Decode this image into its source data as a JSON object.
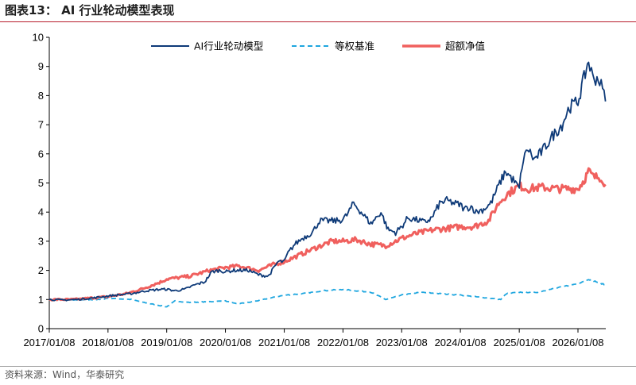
{
  "title": "图表13：  AI 行业轮动模型表现",
  "source": "资料来源：Wind，华泰研究",
  "chart_data": {
    "type": "line",
    "x_ticks": [
      "2017/01/08",
      "2018/01/08",
      "2019/01/08",
      "2020/01/08",
      "2021/01/08",
      "2022/01/08",
      "2023/01/08",
      "2024/01/08",
      "2025/01/08",
      "2026/01/08"
    ],
    "ylim": [
      0,
      10
    ],
    "y_ticks": [
      "0",
      "1",
      "2",
      "3",
      "4",
      "5",
      "6",
      "7",
      "8",
      "9",
      "10"
    ],
    "xlim": [
      "2017/01/08",
      "2026/06/30"
    ],
    "legend_position": "top-center",
    "grid": false,
    "series": [
      {
        "name": "AI行业轮动模型",
        "color": "#0e3a78",
        "style": "solid",
        "points": [
          [
            "2017/01/08",
            1.0
          ],
          [
            "2017/04/01",
            0.98
          ],
          [
            "2017/07/01",
            1.0
          ],
          [
            "2017/10/01",
            1.05
          ],
          [
            "2018/01/08",
            1.12
          ],
          [
            "2018/03/01",
            1.15
          ],
          [
            "2018/06/01",
            1.2
          ],
          [
            "2018/09/01",
            1.3
          ],
          [
            "2018/12/01",
            1.35
          ],
          [
            "2019/01/08",
            1.35
          ],
          [
            "2019/03/01",
            1.3
          ],
          [
            "2019/05/01",
            1.35
          ],
          [
            "2019/07/01",
            1.5
          ],
          [
            "2019/09/01",
            1.6
          ],
          [
            "2019/10/15",
            1.95
          ],
          [
            "2019/12/01",
            2.0
          ],
          [
            "2020/01/08",
            1.95
          ],
          [
            "2020/03/01",
            2.0
          ],
          [
            "2020/06/01",
            2.0
          ],
          [
            "2020/08/01",
            1.85
          ],
          [
            "2020/10/01",
            1.8
          ],
          [
            "2020/12/01",
            2.3
          ],
          [
            "2021/01/08",
            2.3
          ],
          [
            "2021/02/01",
            2.6
          ],
          [
            "2021/03/15",
            2.9
          ],
          [
            "2021/05/01",
            3.1
          ],
          [
            "2021/07/01",
            3.3
          ],
          [
            "2021/08/15",
            3.7
          ],
          [
            "2021/10/01",
            3.7
          ],
          [
            "2021/12/01",
            3.7
          ],
          [
            "2022/01/08",
            3.75
          ],
          [
            "2022/02/01",
            3.9
          ],
          [
            "2022/03/15",
            4.3
          ],
          [
            "2022/05/01",
            4.0
          ],
          [
            "2022/07/01",
            3.6
          ],
          [
            "2022/09/01",
            4.0
          ],
          [
            "2022/10/15",
            3.4
          ],
          [
            "2022/12/01",
            3.3
          ],
          [
            "2023/01/08",
            3.5
          ],
          [
            "2023/02/15",
            3.8
          ],
          [
            "2023/04/01",
            3.75
          ],
          [
            "2023/06/01",
            3.65
          ],
          [
            "2023/07/15",
            3.8
          ],
          [
            "2023/09/01",
            4.3
          ],
          [
            "2023/10/15",
            4.4
          ],
          [
            "2023/12/01",
            4.3
          ],
          [
            "2024/01/08",
            4.25
          ],
          [
            "2024/02/01",
            4.1
          ],
          [
            "2024/03/15",
            4.2
          ],
          [
            "2024/04/15",
            4.0
          ],
          [
            "2024/06/01",
            4.1
          ],
          [
            "2024/07/15",
            4.3
          ],
          [
            "2024/09/01",
            4.9
          ],
          [
            "2024/10/15",
            5.4
          ],
          [
            "2024/12/01",
            5.1
          ],
          [
            "2025/01/08",
            4.8
          ],
          [
            "2025/01/25",
            5.6
          ],
          [
            "2025/03/01",
            6.2
          ],
          [
            "2025/04/10",
            5.8
          ],
          [
            "2025/06/01",
            6.1
          ],
          [
            "2025/08/01",
            6.6
          ],
          [
            "2025/10/01",
            7.0
          ],
          [
            "2025/11/15",
            7.6
          ],
          [
            "2026/01/08",
            7.8
          ],
          [
            "2026/02/15",
            8.6
          ],
          [
            "2026/03/15",
            9.2
          ],
          [
            "2026/04/10",
            8.6
          ],
          [
            "2026/05/15",
            8.6
          ],
          [
            "2026/06/10",
            8.2
          ],
          [
            "2026/06/28",
            7.8
          ]
        ]
      },
      {
        "name": "等权基准",
        "color": "#1ea6df",
        "style": "dashed",
        "points": [
          [
            "2017/01/08",
            1.0
          ],
          [
            "2017/06/01",
            0.98
          ],
          [
            "2017/12/01",
            1.0
          ],
          [
            "2018/01/08",
            1.05
          ],
          [
            "2018/06/01",
            1.0
          ],
          [
            "2018/10/01",
            0.85
          ],
          [
            "2019/01/08",
            0.75
          ],
          [
            "2019/03/01",
            0.95
          ],
          [
            "2019/06/01",
            0.9
          ],
          [
            "2019/09/01",
            0.92
          ],
          [
            "2020/01/08",
            0.95
          ],
          [
            "2020/03/15",
            0.85
          ],
          [
            "2020/06/01",
            0.9
          ],
          [
            "2020/09/01",
            1.0
          ],
          [
            "2021/01/08",
            1.15
          ],
          [
            "2021/05/01",
            1.2
          ],
          [
            "2021/09/01",
            1.3
          ],
          [
            "2022/01/08",
            1.35
          ],
          [
            "2022/04/01",
            1.3
          ],
          [
            "2022/07/01",
            1.25
          ],
          [
            "2022/10/01",
            1.0
          ],
          [
            "2023/01/08",
            1.15
          ],
          [
            "2023/05/01",
            1.25
          ],
          [
            "2023/09/01",
            1.2
          ],
          [
            "2024/01/08",
            1.15
          ],
          [
            "2024/04/01",
            1.1
          ],
          [
            "2024/07/01",
            1.05
          ],
          [
            "2024/09/15",
            1.0
          ],
          [
            "2024/10/20",
            1.2
          ],
          [
            "2025/01/08",
            1.25
          ],
          [
            "2025/05/01",
            1.25
          ],
          [
            "2025/09/01",
            1.4
          ],
          [
            "2026/01/08",
            1.55
          ],
          [
            "2026/03/15",
            1.7
          ],
          [
            "2026/06/28",
            1.5
          ]
        ]
      },
      {
        "name": "超额净值",
        "color": "#f0605e",
        "style": "solid",
        "points": [
          [
            "2017/01/08",
            1.0
          ],
          [
            "2017/06/01",
            1.0
          ],
          [
            "2017/12/01",
            1.08
          ],
          [
            "2018/01/08",
            1.1
          ],
          [
            "2018/05/01",
            1.2
          ],
          [
            "2018/08/01",
            1.35
          ],
          [
            "2018/12/01",
            1.6
          ],
          [
            "2019/01/08",
            1.7
          ],
          [
            "2019/06/01",
            1.8
          ],
          [
            "2019/10/01",
            2.0
          ],
          [
            "2020/01/08",
            2.1
          ],
          [
            "2020/04/01",
            2.15
          ],
          [
            "2020/08/01",
            2.0
          ],
          [
            "2020/11/01",
            2.2
          ],
          [
            "2021/01/08",
            2.3
          ],
          [
            "2021/04/01",
            2.5
          ],
          [
            "2021/08/01",
            2.8
          ],
          [
            "2021/11/01",
            3.0
          ],
          [
            "2022/01/08",
            3.0
          ],
          [
            "2022/04/01",
            3.05
          ],
          [
            "2022/07/01",
            2.9
          ],
          [
            "2022/10/01",
            2.85
          ],
          [
            "2023/01/08",
            3.1
          ],
          [
            "2023/04/01",
            3.25
          ],
          [
            "2023/08/01",
            3.4
          ],
          [
            "2023/11/01",
            3.45
          ],
          [
            "2024/01/08",
            3.5
          ],
          [
            "2024/04/01",
            3.5
          ],
          [
            "2024/07/01",
            3.7
          ],
          [
            "2024/09/01",
            4.3
          ],
          [
            "2024/10/20",
            4.6
          ],
          [
            "2025/01/08",
            4.9
          ],
          [
            "2025/03/01",
            4.8
          ],
          [
            "2025/06/01",
            4.85
          ],
          [
            "2025/09/01",
            4.8
          ],
          [
            "2025/12/01",
            4.8
          ],
          [
            "2026/01/08",
            4.8
          ],
          [
            "2026/02/15",
            5.1
          ],
          [
            "2026/03/15",
            5.4
          ],
          [
            "2026/04/15",
            5.2
          ],
          [
            "2026/06/01",
            5.2
          ],
          [
            "2026/06/28",
            4.95
          ]
        ]
      }
    ]
  }
}
